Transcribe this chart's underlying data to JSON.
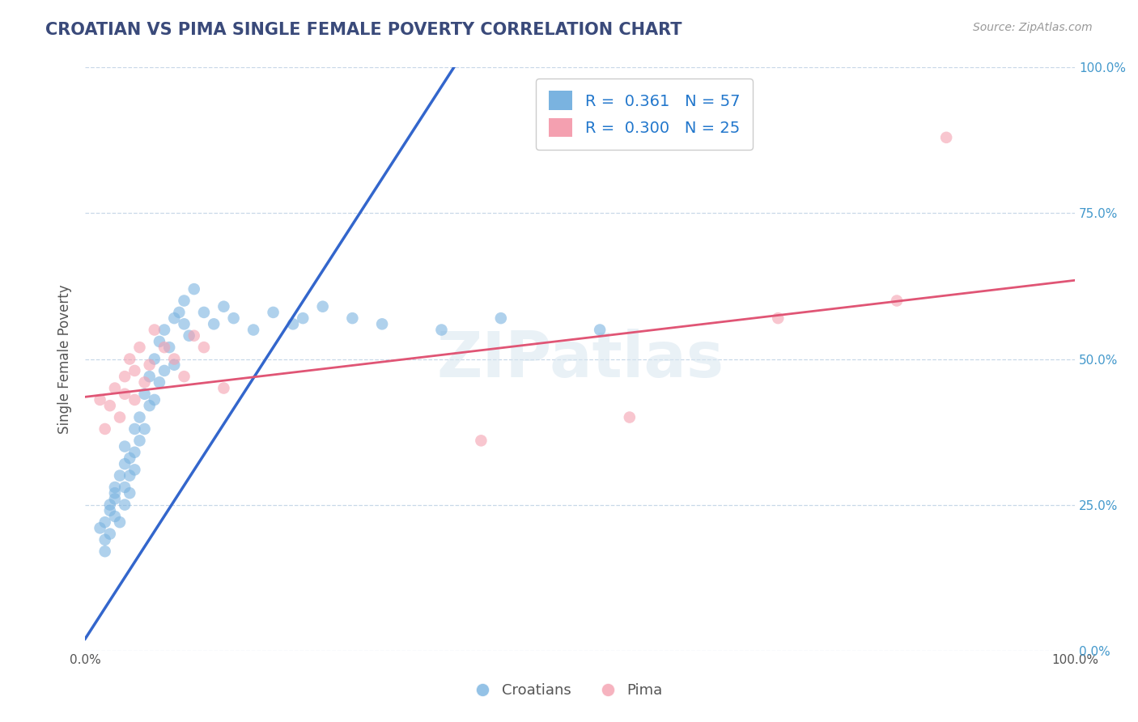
{
  "title": "CROATIAN VS PIMA SINGLE FEMALE POVERTY CORRELATION CHART",
  "source": "Source: ZipAtlas.com",
  "ylabel": "Single Female Poverty",
  "xlim": [
    0.0,
    1.0
  ],
  "ylim": [
    0.0,
    1.0
  ],
  "croatian_color": "#7ab3e0",
  "pima_color": "#f4a0b0",
  "croatian_line_color": "#3366cc",
  "pima_line_color": "#e05575",
  "legend_r_croatian": "0.361",
  "legend_n_croatian": "57",
  "legend_r_pima": "0.300",
  "legend_n_pima": "25",
  "watermark": "ZIPatlas",
  "background_color": "#ffffff",
  "grid_color": "#c8d8e8",
  "title_color": "#3a4a7a",
  "axis_label_color": "#555555",
  "blue_line_x": [
    0.0,
    0.38
  ],
  "blue_line_y": [
    0.02,
    1.02
  ],
  "pink_line_x": [
    0.0,
    1.0
  ],
  "pink_line_y": [
    0.435,
    0.635
  ],
  "croatian_x": [
    0.015,
    0.02,
    0.02,
    0.02,
    0.025,
    0.025,
    0.025,
    0.03,
    0.03,
    0.03,
    0.03,
    0.035,
    0.035,
    0.04,
    0.04,
    0.04,
    0.04,
    0.045,
    0.045,
    0.045,
    0.05,
    0.05,
    0.05,
    0.055,
    0.055,
    0.06,
    0.06,
    0.065,
    0.065,
    0.07,
    0.07,
    0.075,
    0.075,
    0.08,
    0.08,
    0.085,
    0.09,
    0.09,
    0.095,
    0.1,
    0.1,
    0.105,
    0.11,
    0.12,
    0.13,
    0.14,
    0.15,
    0.17,
    0.19,
    0.21,
    0.22,
    0.24,
    0.27,
    0.3,
    0.36,
    0.42,
    0.52
  ],
  "croatian_y": [
    0.21,
    0.19,
    0.22,
    0.17,
    0.24,
    0.2,
    0.25,
    0.26,
    0.28,
    0.23,
    0.27,
    0.3,
    0.22,
    0.32,
    0.25,
    0.28,
    0.35,
    0.33,
    0.27,
    0.3,
    0.38,
    0.34,
    0.31,
    0.4,
    0.36,
    0.44,
    0.38,
    0.42,
    0.47,
    0.43,
    0.5,
    0.46,
    0.53,
    0.48,
    0.55,
    0.52,
    0.57,
    0.49,
    0.58,
    0.56,
    0.6,
    0.54,
    0.62,
    0.58,
    0.56,
    0.59,
    0.57,
    0.55,
    0.58,
    0.56,
    0.57,
    0.59,
    0.57,
    0.56,
    0.55,
    0.57,
    0.55
  ],
  "pima_x": [
    0.015,
    0.02,
    0.025,
    0.03,
    0.035,
    0.04,
    0.04,
    0.045,
    0.05,
    0.05,
    0.055,
    0.06,
    0.065,
    0.07,
    0.08,
    0.09,
    0.1,
    0.11,
    0.12,
    0.14,
    0.4,
    0.55,
    0.7,
    0.82,
    0.87
  ],
  "pima_y": [
    0.43,
    0.38,
    0.42,
    0.45,
    0.4,
    0.47,
    0.44,
    0.5,
    0.48,
    0.43,
    0.52,
    0.46,
    0.49,
    0.55,
    0.52,
    0.5,
    0.47,
    0.54,
    0.52,
    0.45,
    0.36,
    0.4,
    0.57,
    0.6,
    0.88
  ]
}
